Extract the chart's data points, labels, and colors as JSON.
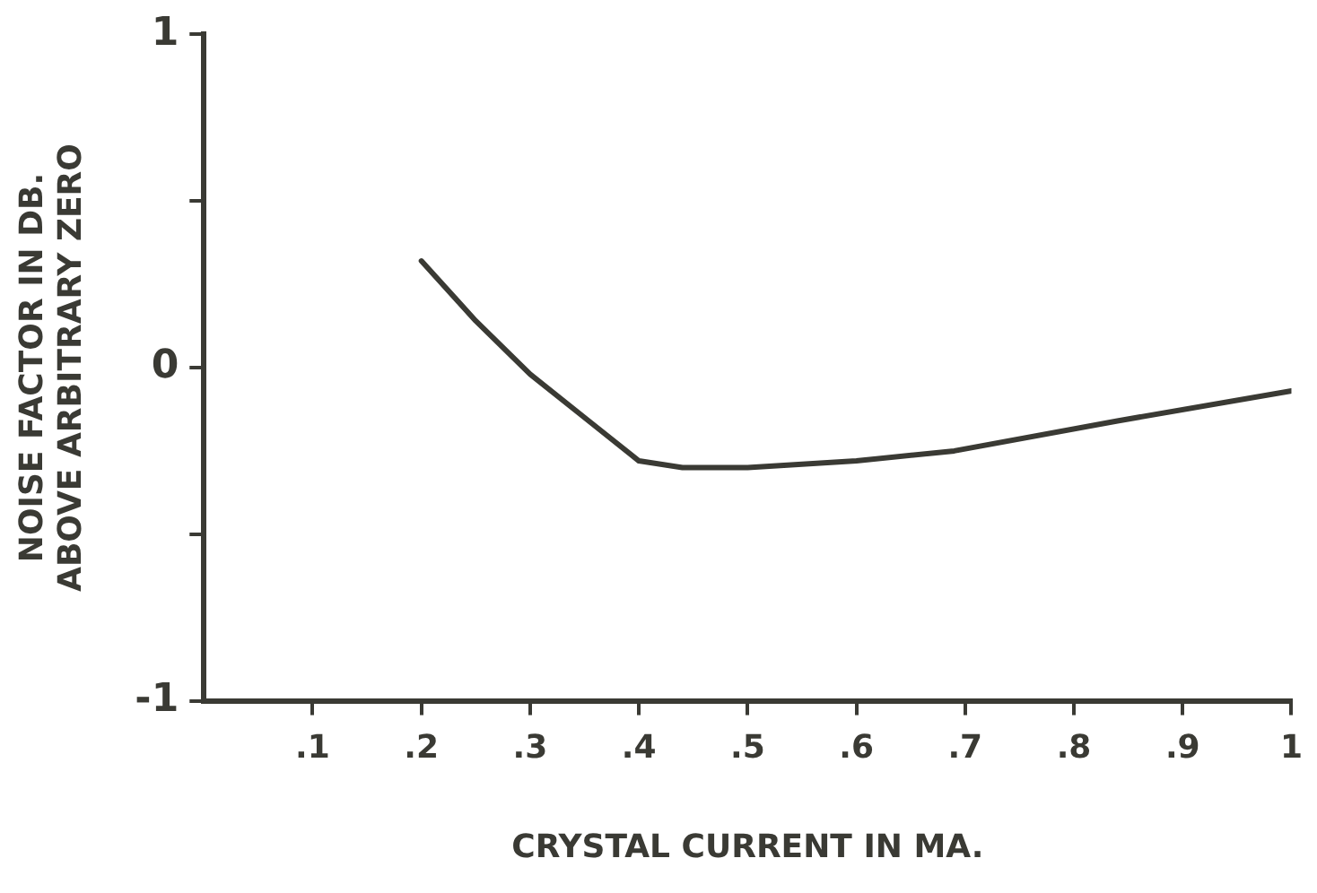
{
  "chart_data": {
    "type": "line",
    "xlabel": "CRYSTAL CURRENT IN MA.",
    "ylabel": "NOISE FACTOR IN DB.\nABOVE ARBITRARY ZERO",
    "x": [
      0.2,
      0.25,
      0.3,
      0.35,
      0.4,
      0.44,
      0.5,
      0.6,
      0.69,
      0.84,
      1.0
    ],
    "values": [
      0.32,
      0.14,
      -0.02,
      -0.15,
      -0.28,
      -0.3,
      -0.3,
      -0.28,
      -0.25,
      -0.16,
      -0.07
    ],
    "color": "#3a3a34",
    "marker": "none",
    "line_style": "solid",
    "grid": false,
    "legend": false,
    "xlim": [
      0,
      1
    ],
    "xticks": [
      {
        "value": 0.1,
        "label": ".1"
      },
      {
        "value": 0.2,
        "label": ".2"
      },
      {
        "value": 0.3,
        "label": ".3"
      },
      {
        "value": 0.4,
        "label": ".4"
      },
      {
        "value": 0.5,
        "label": ".5"
      },
      {
        "value": 0.6,
        "label": ".6"
      },
      {
        "value": 0.7,
        "label": ".7"
      },
      {
        "value": 0.8,
        "label": ".8"
      },
      {
        "value": 0.9,
        "label": ".9"
      },
      {
        "value": 1,
        "label": "1"
      }
    ],
    "ylim": [
      -1,
      1
    ],
    "yticks": [
      {
        "value": -1,
        "label": "-1"
      },
      {
        "value": -0.5,
        "label": null
      },
      {
        "value": 0,
        "label": "0"
      },
      {
        "value": 0.5,
        "label": null
      },
      {
        "value": 1,
        "label": "1"
      }
    ]
  }
}
